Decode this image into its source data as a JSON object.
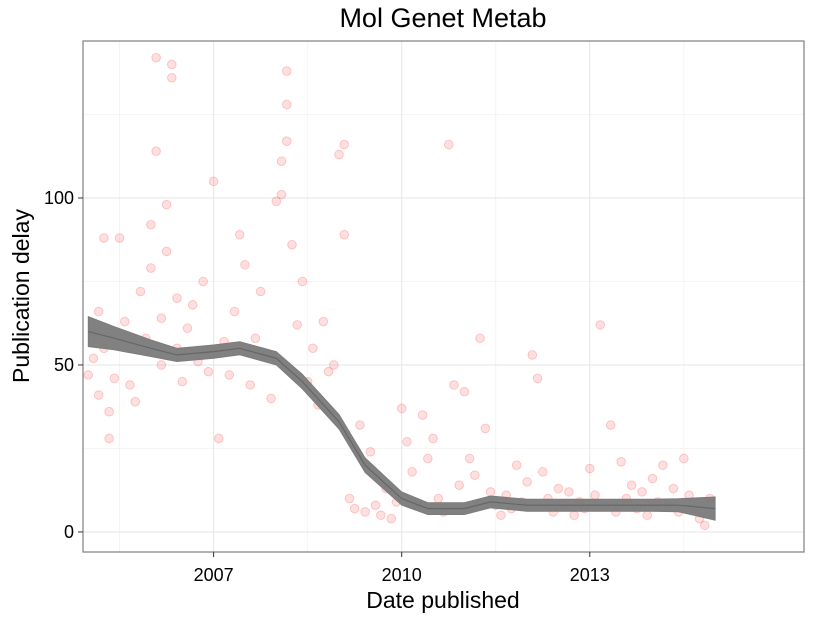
{
  "chart_data": {
    "type": "scatter",
    "title": "Mol Genet Metab",
    "xlabel": "Date published",
    "ylabel": "Publication delay",
    "x_ticks": [
      "2007",
      "2010",
      "2013"
    ],
    "y_ticks": [
      "0",
      "50",
      "100"
    ],
    "xlim": [
      "2004-12",
      "2016-06"
    ],
    "ylim": [
      -6,
      147
    ],
    "grid": true,
    "legend": "none",
    "point_color": "#ff0000",
    "point_alpha": 0.12,
    "smooth_color": "#7a7a7a",
    "series": [
      {
        "points": [
          [
            "2005-01",
            47
          ],
          [
            "2005-02",
            52
          ],
          [
            "2005-02",
            60
          ],
          [
            "2005-03",
            41
          ],
          [
            "2005-03",
            66
          ],
          [
            "2005-04",
            88
          ],
          [
            "2005-04",
            55
          ],
          [
            "2005-05",
            36
          ],
          [
            "2005-05",
            28
          ],
          [
            "2005-06",
            46
          ],
          [
            "2005-07",
            88
          ],
          [
            "2005-08",
            63
          ],
          [
            "2005-09",
            44
          ],
          [
            "2005-10",
            39
          ],
          [
            "2005-11",
            72
          ],
          [
            "2005-12",
            58
          ],
          [
            "2006-01",
            92
          ],
          [
            "2006-01",
            79
          ],
          [
            "2006-02",
            142
          ],
          [
            "2006-02",
            114
          ],
          [
            "2006-03",
            64
          ],
          [
            "2006-03",
            50
          ],
          [
            "2006-04",
            98
          ],
          [
            "2006-04",
            84
          ],
          [
            "2006-05",
            136
          ],
          [
            "2006-05",
            140
          ],
          [
            "2006-06",
            70
          ],
          [
            "2006-06",
            55
          ],
          [
            "2006-07",
            45
          ],
          [
            "2006-08",
            61
          ],
          [
            "2006-09",
            68
          ],
          [
            "2006-10",
            51
          ],
          [
            "2006-11",
            75
          ],
          [
            "2006-12",
            48
          ],
          [
            "2007-01",
            105
          ],
          [
            "2007-02",
            28
          ],
          [
            "2007-03",
            57
          ],
          [
            "2007-04",
            47
          ],
          [
            "2007-05",
            66
          ],
          [
            "2007-06",
            89
          ],
          [
            "2007-07",
            80
          ],
          [
            "2007-08",
            44
          ],
          [
            "2007-09",
            58
          ],
          [
            "2007-10",
            72
          ],
          [
            "2007-11",
            53
          ],
          [
            "2007-12",
            40
          ],
          [
            "2008-01",
            99
          ],
          [
            "2008-02",
            101
          ],
          [
            "2008-02",
            111
          ],
          [
            "2008-03",
            117
          ],
          [
            "2008-03",
            128
          ],
          [
            "2008-03",
            138
          ],
          [
            "2008-04",
            86
          ],
          [
            "2008-05",
            62
          ],
          [
            "2008-06",
            75
          ],
          [
            "2008-07",
            45
          ],
          [
            "2008-08",
            55
          ],
          [
            "2008-09",
            38
          ],
          [
            "2008-10",
            63
          ],
          [
            "2008-11",
            48
          ],
          [
            "2008-12",
            50
          ],
          [
            "2009-01",
            113
          ],
          [
            "2009-02",
            89
          ],
          [
            "2009-02",
            116
          ],
          [
            "2009-03",
            10
          ],
          [
            "2009-04",
            7
          ],
          [
            "2009-05",
            32
          ],
          [
            "2009-06",
            6
          ],
          [
            "2009-07",
            24
          ],
          [
            "2009-08",
            8
          ],
          [
            "2009-09",
            5
          ],
          [
            "2009-10",
            13
          ],
          [
            "2009-11",
            4
          ],
          [
            "2009-12",
            9
          ],
          [
            "2010-01",
            37
          ],
          [
            "2010-02",
            27
          ],
          [
            "2010-03",
            18
          ],
          [
            "2010-04",
            8
          ],
          [
            "2010-05",
            35
          ],
          [
            "2010-06",
            22
          ],
          [
            "2010-07",
            28
          ],
          [
            "2010-08",
            10
          ],
          [
            "2010-09",
            6
          ],
          [
            "2010-10",
            116
          ],
          [
            "2010-11",
            44
          ],
          [
            "2010-12",
            14
          ],
          [
            "2011-01",
            42
          ],
          [
            "2011-02",
            22
          ],
          [
            "2011-03",
            17
          ],
          [
            "2011-04",
            58
          ],
          [
            "2011-05",
            31
          ],
          [
            "2011-06",
            12
          ],
          [
            "2011-07",
            8
          ],
          [
            "2011-08",
            5
          ],
          [
            "2011-09",
            11
          ],
          [
            "2011-10",
            7
          ],
          [
            "2011-11",
            20
          ],
          [
            "2011-12",
            9
          ],
          [
            "2012-01",
            15
          ],
          [
            "2012-02",
            53
          ],
          [
            "2012-03",
            46
          ],
          [
            "2012-04",
            18
          ],
          [
            "2012-05",
            10
          ],
          [
            "2012-06",
            6
          ],
          [
            "2012-07",
            13
          ],
          [
            "2012-08",
            8
          ],
          [
            "2012-09",
            12
          ],
          [
            "2012-10",
            5
          ],
          [
            "2012-11",
            9
          ],
          [
            "2012-12",
            7
          ],
          [
            "2013-01",
            19
          ],
          [
            "2013-02",
            11
          ],
          [
            "2013-03",
            62
          ],
          [
            "2013-04",
            8
          ],
          [
            "2013-05",
            32
          ],
          [
            "2013-06",
            6
          ],
          [
            "2013-07",
            21
          ],
          [
            "2013-08",
            10
          ],
          [
            "2013-09",
            14
          ],
          [
            "2013-10",
            7
          ],
          [
            "2013-11",
            12
          ],
          [
            "2013-12",
            5
          ],
          [
            "2014-01",
            16
          ],
          [
            "2014-02",
            9
          ],
          [
            "2014-03",
            20
          ],
          [
            "2014-04",
            8
          ],
          [
            "2014-05",
            13
          ],
          [
            "2014-06",
            6
          ],
          [
            "2014-07",
            22
          ],
          [
            "2014-08",
            11
          ],
          [
            "2014-09",
            7
          ],
          [
            "2014-10",
            4
          ],
          [
            "2014-11",
            2
          ],
          [
            "2014-12",
            10
          ]
        ]
      }
    ],
    "smooth": {
      "x": [
        "2005-01",
        "2005-06",
        "2006-01",
        "2006-06",
        "2007-01",
        "2007-06",
        "2008-01",
        "2008-06",
        "2009-01",
        "2009-06",
        "2010-01",
        "2010-06",
        "2011-01",
        "2011-06",
        "2012-01",
        "2012-06",
        "2013-01",
        "2013-06",
        "2014-01",
        "2014-06",
        "2015-01"
      ],
      "y": [
        60,
        58,
        55,
        53,
        54,
        55,
        52,
        45,
        33,
        20,
        10,
        7,
        7,
        9,
        8,
        8,
        8,
        8,
        8,
        8,
        7
      ],
      "band": [
        4.5,
        3.5,
        2.5,
        2,
        2,
        2,
        2,
        2.2,
        2.2,
        2.2,
        2,
        1.8,
        1.8,
        1.8,
        1.8,
        1.8,
        1.8,
        1.8,
        1.8,
        2,
        3.5
      ]
    }
  }
}
